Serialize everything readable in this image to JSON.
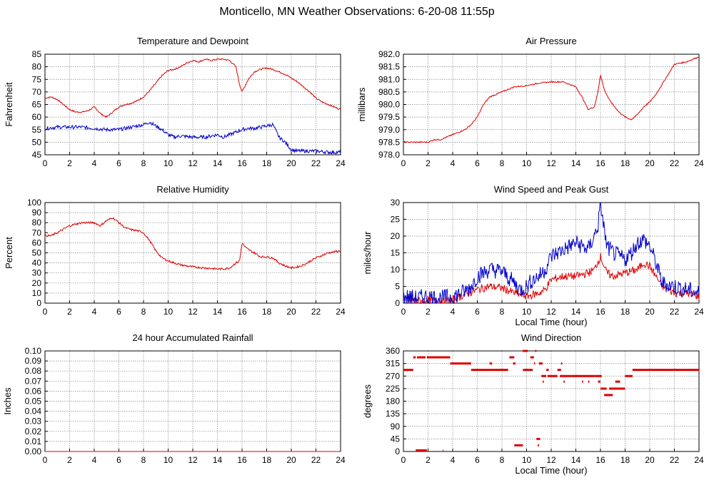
{
  "title": "Monticello, MN Weather Observations: 6-20-08 11:55p",
  "colors": {
    "temperature": "#dd0000",
    "dewpoint": "#0000cc",
    "humidity": "#dd0000",
    "pressure": "#dd0000",
    "wind_speed": "#dd0000",
    "peak_gust": "#0000cc",
    "rainfall": "#dd0000",
    "direction": "#dd0000",
    "grid": "#888888",
    "axis": "#000000"
  },
  "chart_data": [
    {
      "id": "temp",
      "type": "line",
      "title": "Temperature and Dewpoint",
      "xlabel": "",
      "ylabel": "Fahrenheit",
      "xlim": [
        0,
        24
      ],
      "ylim": [
        45,
        85
      ],
      "xticks": [
        "0",
        "2",
        "4",
        "6",
        "8",
        "10",
        "12",
        "14",
        "16",
        "18",
        "20",
        "22",
        "24"
      ],
      "yticks": [
        "45",
        "50",
        "55",
        "60",
        "65",
        "70",
        "75",
        "80",
        "85"
      ],
      "grid": true,
      "series": [
        {
          "color": "#dd0000",
          "noise": 0.3,
          "x": [
            0,
            0.5,
            1,
            1.5,
            2,
            2.5,
            3,
            3.5,
            4,
            4.3,
            4.6,
            5,
            5.5,
            6,
            6.5,
            7,
            7.5,
            8,
            8.5,
            9,
            9.5,
            10,
            10.5,
            11,
            11.5,
            12,
            12.5,
            13,
            13.5,
            14,
            14.5,
            15,
            15.5,
            15.8,
            16,
            16.2,
            16.5,
            17,
            17.5,
            18,
            18.5,
            19,
            19.5,
            20,
            20.5,
            21,
            21.5,
            22,
            22.5,
            23,
            23.5,
            24
          ],
          "y": [
            67.5,
            68,
            67,
            65,
            63,
            62,
            62,
            62.5,
            64,
            62.5,
            61,
            60,
            62,
            64,
            65,
            65.5,
            66.5,
            68,
            70.5,
            73.5,
            76.5,
            78.5,
            79,
            80,
            81.5,
            82.5,
            82,
            83,
            82.5,
            83,
            83,
            82.5,
            80,
            73,
            70,
            72,
            75,
            78,
            79,
            79.5,
            79,
            78,
            77,
            75.5,
            74,
            72,
            70,
            67.5,
            66,
            65,
            64,
            63
          ]
        },
        {
          "color": "#0000cc",
          "noise": 0.7,
          "x": [
            0,
            1,
            2,
            3,
            4,
            5,
            6,
            7,
            8,
            8.5,
            9,
            9.5,
            10,
            10.5,
            11,
            12,
            13,
            14,
            14.5,
            15,
            15.5,
            16,
            16.5,
            17,
            17.5,
            18,
            18.5,
            19,
            19.5,
            20,
            20.5,
            21,
            22,
            23,
            24
          ],
          "y": [
            55.5,
            56,
            56,
            56,
            55.5,
            55,
            55,
            56,
            57,
            58,
            56.5,
            55,
            53,
            52,
            52.5,
            52,
            52,
            53,
            52,
            53,
            54,
            55,
            55.5,
            55.5,
            56,
            56.5,
            57,
            52,
            50,
            47,
            46.5,
            46.5,
            46.5,
            46,
            46
          ]
        }
      ]
    },
    {
      "id": "pressure",
      "type": "line",
      "title": "Air Pressure",
      "xlabel": "",
      "ylabel": "millibars",
      "xlim": [
        0,
        24
      ],
      "ylim": [
        978.0,
        982.0
      ],
      "xticks": [
        "0",
        "2",
        "4",
        "6",
        "8",
        "10",
        "12",
        "14",
        "16",
        "18",
        "20",
        "22",
        "24"
      ],
      "yticks": [
        "978.0",
        "978.5",
        "979.0",
        "979.5",
        "980.0",
        "980.5",
        "981.0",
        "981.5",
        "982.0"
      ],
      "grid": true,
      "series": [
        {
          "color": "#dd0000",
          "noise": 0.025,
          "x": [
            0,
            1,
            2,
            2.5,
            3,
            4,
            5,
            5.5,
            6,
            6.5,
            7,
            8,
            9,
            10,
            11,
            12,
            13,
            14,
            14.5,
            15,
            15.5,
            15.8,
            16,
            16.3,
            16.7,
            17,
            17.5,
            18,
            18.5,
            19,
            19.5,
            20,
            20.5,
            21,
            21.5,
            22,
            23,
            24
          ],
          "y": [
            978.5,
            978.5,
            978.5,
            978.6,
            978.6,
            978.8,
            979.0,
            979.2,
            979.5,
            980.0,
            980.3,
            980.5,
            980.7,
            980.75,
            980.85,
            980.9,
            980.9,
            980.7,
            980.3,
            979.8,
            979.9,
            980.5,
            981.2,
            980.6,
            980.2,
            980.0,
            979.7,
            979.5,
            979.4,
            979.6,
            979.9,
            980.1,
            980.4,
            980.8,
            981.2,
            981.6,
            981.7,
            981.9
          ]
        }
      ]
    },
    {
      "id": "humidity",
      "type": "line",
      "title": "Relative Humidity",
      "xlabel": "",
      "ylabel": "Percent",
      "xlim": [
        0,
        24
      ],
      "ylim": [
        0,
        100
      ],
      "xticks": [
        "0",
        "2",
        "4",
        "6",
        "8",
        "10",
        "12",
        "14",
        "16",
        "18",
        "20",
        "22",
        "24"
      ],
      "yticks": [
        "0",
        "10",
        "20",
        "30",
        "40",
        "50",
        "60",
        "70",
        "80",
        "90",
        "100"
      ],
      "grid": true,
      "series": [
        {
          "color": "#dd0000",
          "noise": 1.0,
          "x": [
            0,
            0.5,
            1,
            2,
            3,
            4,
            4.5,
            5,
            5.5,
            6,
            6.5,
            7,
            7.5,
            8,
            8.5,
            9,
            9.5,
            10,
            10.5,
            11,
            12,
            13,
            14,
            14.5,
            15,
            15.5,
            15.8,
            16,
            16.3,
            16.7,
            17,
            17.5,
            18,
            18.5,
            19,
            19.5,
            20,
            20.5,
            21,
            22,
            23,
            24
          ],
          "y": [
            67,
            67,
            70,
            77,
            80,
            80,
            77,
            82,
            85,
            80,
            75,
            73,
            72,
            70,
            62,
            52,
            45,
            42,
            40,
            38,
            36,
            35,
            34,
            34,
            35,
            40,
            42,
            60,
            55,
            52,
            50,
            46,
            46,
            45,
            40,
            37,
            35,
            36,
            38,
            45,
            50,
            52
          ]
        }
      ]
    },
    {
      "id": "wind",
      "type": "line",
      "title": "Wind Speed and Peak Gust",
      "xlabel": "Local Time (hour)",
      "ylabel": "miles/hour",
      "xlim": [
        0,
        24
      ],
      "ylim": [
        0,
        30
      ],
      "xticks": [
        "0",
        "2",
        "4",
        "6",
        "8",
        "10",
        "12",
        "14",
        "16",
        "18",
        "20",
        "22",
        "24"
      ],
      "yticks": [
        "0",
        "5",
        "10",
        "15",
        "20",
        "25",
        "30"
      ],
      "grid": true,
      "series": [
        {
          "color": "#dd0000",
          "noise": 1.2,
          "x": [
            0,
            1,
            2,
            3,
            4,
            5,
            6,
            7,
            8,
            9,
            10,
            11,
            11.5,
            12,
            13,
            14,
            15,
            15.5,
            16,
            16.5,
            17,
            18,
            19,
            19.5,
            20,
            20.5,
            21,
            22,
            23,
            24
          ],
          "y": [
            1,
            0.5,
            1,
            0.5,
            1,
            2.5,
            4,
            5,
            4.5,
            3,
            2,
            3,
            4,
            7,
            8,
            8,
            9,
            10,
            14,
            9,
            8,
            9,
            10,
            12,
            11,
            8,
            5,
            3,
            3,
            2
          ]
        },
        {
          "color": "#0000cc",
          "noise": 2.5,
          "x": [
            0,
            1,
            2,
            3,
            4,
            5,
            5.5,
            6,
            7,
            8,
            9,
            9.5,
            10,
            10.5,
            11,
            11.5,
            12,
            13,
            14,
            15,
            15.5,
            15.8,
            16,
            16.3,
            16.5,
            17,
            17.5,
            18,
            18.5,
            19,
            19.5,
            20,
            20.5,
            21,
            22,
            23,
            24
          ],
          "y": [
            2,
            1.5,
            2,
            1.5,
            2,
            3.5,
            5,
            8,
            10,
            9.5,
            6,
            4,
            5,
            7,
            8,
            10,
            14,
            16,
            18,
            16,
            20,
            23,
            30,
            22,
            17,
            15,
            14,
            13,
            15,
            18,
            19,
            17,
            12,
            6,
            5,
            4,
            3
          ]
        }
      ]
    },
    {
      "id": "rain",
      "type": "line",
      "title": "24 hour Accumulated Rainfall",
      "xlabel": "",
      "ylabel": "Inches",
      "xlim": [
        0,
        24
      ],
      "ylim": [
        0,
        0.1
      ],
      "xticks": [
        "0",
        "2",
        "4",
        "6",
        "8",
        "10",
        "12",
        "14",
        "16",
        "18",
        "20",
        "22",
        "24"
      ],
      "yticks": [
        "0.00",
        "0.01",
        "0.02",
        "0.03",
        "0.04",
        "0.05",
        "0.06",
        "0.07",
        "0.08",
        "0.09",
        "0.10"
      ],
      "grid": true,
      "series": [
        {
          "color": "#dd0000",
          "noise": 0,
          "x": [
            0,
            24
          ],
          "y": [
            0,
            0
          ]
        }
      ]
    },
    {
      "id": "direction",
      "type": "scatter",
      "title": "Wind Direction",
      "xlabel": "Local Time (hour)",
      "ylabel": "degrees",
      "xlim": [
        0,
        24
      ],
      "ylim": [
        0,
        360
      ],
      "xticks": [
        "0",
        "2",
        "4",
        "6",
        "8",
        "10",
        "12",
        "14",
        "16",
        "18",
        "20",
        "22",
        "24"
      ],
      "yticks": [
        "0",
        "45",
        "90",
        "135",
        "180",
        "225",
        "270",
        "315",
        "360"
      ],
      "grid": true,
      "segments": [
        [
          0,
          0.8,
          292
        ],
        [
          0.8,
          1.0,
          337
        ],
        [
          1.0,
          1.9,
          4
        ],
        [
          1.9,
          3.8,
          337
        ],
        [
          1.1,
          1.8,
          337
        ],
        [
          3.2,
          3.25,
          4
        ],
        [
          3.8,
          5.5,
          315
        ],
        [
          5.5,
          8.5,
          292
        ],
        [
          7.0,
          7.2,
          315
        ],
        [
          8.6,
          9.0,
          337
        ],
        [
          8.9,
          9.1,
          315
        ],
        [
          9.0,
          9.7,
          22
        ],
        [
          9.7,
          10.1,
          360
        ],
        [
          9.7,
          10.5,
          292
        ],
        [
          10.3,
          10.6,
          337
        ],
        [
          10.6,
          10.7,
          315
        ],
        [
          10.7,
          10.8,
          360
        ],
        [
          10.8,
          11.1,
          45
        ],
        [
          10.9,
          11.0,
          22
        ],
        [
          11.0,
          11.3,
          315
        ],
        [
          11.2,
          11.6,
          270
        ],
        [
          11.3,
          11.4,
          250
        ],
        [
          11.6,
          11.8,
          292
        ],
        [
          11.7,
          12.5,
          270
        ],
        [
          12.5,
          12.8,
          292
        ],
        [
          12.8,
          12.9,
          315
        ],
        [
          12.7,
          13.6,
          270
        ],
        [
          13.0,
          13.1,
          250
        ],
        [
          13.6,
          14.0,
          270
        ],
        [
          14.0,
          15.5,
          270
        ],
        [
          14.5,
          14.6,
          250
        ],
        [
          15.0,
          15.1,
          250
        ],
        [
          15.5,
          16.1,
          270
        ],
        [
          15.8,
          16.0,
          250
        ],
        [
          16.0,
          16.5,
          225
        ],
        [
          16.3,
          17.0,
          202
        ],
        [
          16.7,
          17.5,
          225
        ],
        [
          17.2,
          17.6,
          250
        ],
        [
          17.5,
          18.0,
          225
        ],
        [
          18.0,
          18.6,
          270
        ],
        [
          18.6,
          24,
          292
        ]
      ]
    }
  ]
}
